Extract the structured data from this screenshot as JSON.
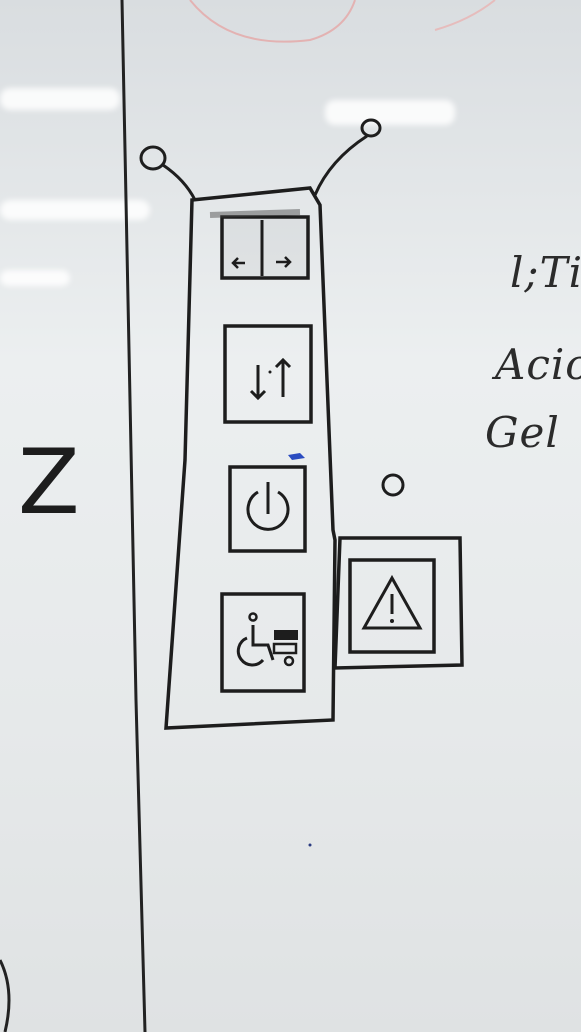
{
  "whiteboard": {
    "left_letter": "Z",
    "right_text_lines": [
      "l;Ti",
      "Acio",
      "Gel"
    ]
  },
  "sketch": {
    "panel": {
      "buttons": [
        {
          "icon": "left-right-arrows-icon"
        },
        {
          "icon": "up-down-arrows-icon"
        },
        {
          "icon": "power-icon"
        },
        {
          "icon": "wheelchair-icon"
        }
      ]
    },
    "side_box": {
      "icon": "warning-triangle-icon"
    },
    "indicator": {
      "icon": "indicator-led-icon"
    }
  }
}
